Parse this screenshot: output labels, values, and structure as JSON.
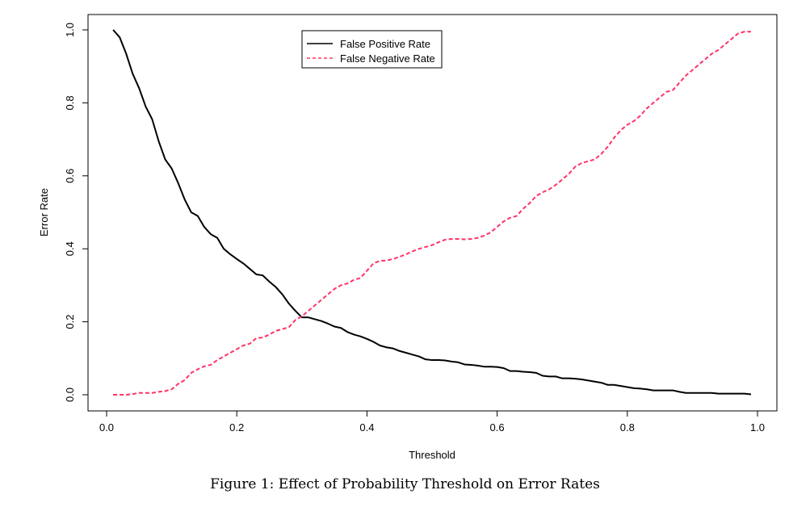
{
  "caption": "Figure 1: Effect of Probability Threshold on Error Rates",
  "colors": {
    "fpr": "#000000",
    "fnr": "#ff3366"
  },
  "chart_data": {
    "type": "line",
    "xlabel": "Threshold",
    "ylabel": "Error Rate",
    "xlim": [
      0,
      1
    ],
    "ylim": [
      0,
      1
    ],
    "xticks": [
      "0.0",
      "0.2",
      "0.4",
      "0.6",
      "0.8",
      "1.0"
    ],
    "yticks": [
      "0.0",
      "0.2",
      "0.4",
      "0.6",
      "0.8",
      "1.0"
    ],
    "grid": false,
    "legend": "top-center",
    "series": [
      {
        "name": "False Positive Rate",
        "style": "solid",
        "color": "#000000",
        "x": [
          0.01,
          0.02,
          0.03,
          0.04,
          0.05,
          0.06,
          0.07,
          0.08,
          0.09,
          0.1,
          0.11,
          0.12,
          0.13,
          0.14,
          0.15,
          0.16,
          0.17,
          0.18,
          0.19,
          0.2,
          0.21,
          0.22,
          0.23,
          0.24,
          0.25,
          0.26,
          0.27,
          0.28,
          0.29,
          0.3,
          0.31,
          0.32,
          0.33,
          0.34,
          0.35,
          0.36,
          0.37,
          0.38,
          0.39,
          0.4,
          0.41,
          0.42,
          0.43,
          0.44,
          0.45,
          0.46,
          0.47,
          0.48,
          0.49,
          0.5,
          0.51,
          0.52,
          0.53,
          0.54,
          0.55,
          0.56,
          0.57,
          0.58,
          0.59,
          0.6,
          0.61,
          0.62,
          0.63,
          0.64,
          0.65,
          0.66,
          0.67,
          0.68,
          0.69,
          0.7,
          0.71,
          0.72,
          0.73,
          0.74,
          0.75,
          0.76,
          0.77,
          0.78,
          0.79,
          0.8,
          0.81,
          0.82,
          0.83,
          0.84,
          0.85,
          0.86,
          0.87,
          0.88,
          0.89,
          0.9,
          0.91,
          0.92,
          0.93,
          0.94,
          0.95,
          0.96,
          0.97,
          0.98,
          0.99
        ],
        "values": [
          1.0,
          0.98,
          0.935,
          0.88,
          0.84,
          0.79,
          0.755,
          0.695,
          0.645,
          0.62,
          0.58,
          0.535,
          0.5,
          0.49,
          0.46,
          0.44,
          0.43,
          0.4,
          0.385,
          0.372,
          0.36,
          0.345,
          0.33,
          0.327,
          0.31,
          0.295,
          0.275,
          0.25,
          0.23,
          0.212,
          0.212,
          0.207,
          0.202,
          0.195,
          0.187,
          0.183,
          0.172,
          0.165,
          0.16,
          0.153,
          0.145,
          0.135,
          0.13,
          0.127,
          0.12,
          0.115,
          0.11,
          0.105,
          0.097,
          0.095,
          0.095,
          0.094,
          0.091,
          0.089,
          0.083,
          0.082,
          0.08,
          0.077,
          0.077,
          0.076,
          0.073,
          0.065,
          0.065,
          0.063,
          0.062,
          0.06,
          0.052,
          0.05,
          0.05,
          0.045,
          0.045,
          0.044,
          0.042,
          0.039,
          0.036,
          0.033,
          0.027,
          0.027,
          0.024,
          0.021,
          0.018,
          0.017,
          0.015,
          0.012,
          0.012,
          0.012,
          0.012,
          0.008,
          0.005,
          0.005,
          0.005,
          0.005,
          0.005,
          0.003,
          0.003,
          0.003,
          0.003,
          0.003,
          0.001
        ]
      },
      {
        "name": "False Negative Rate",
        "style": "dashed",
        "color": "#ff3366",
        "x": [
          0.01,
          0.02,
          0.03,
          0.04,
          0.05,
          0.06,
          0.07,
          0.08,
          0.09,
          0.1,
          0.11,
          0.12,
          0.13,
          0.14,
          0.15,
          0.16,
          0.17,
          0.18,
          0.19,
          0.2,
          0.21,
          0.22,
          0.23,
          0.24,
          0.25,
          0.26,
          0.27,
          0.28,
          0.29,
          0.3,
          0.31,
          0.32,
          0.33,
          0.34,
          0.35,
          0.36,
          0.37,
          0.38,
          0.39,
          0.4,
          0.41,
          0.42,
          0.43,
          0.44,
          0.45,
          0.46,
          0.47,
          0.48,
          0.49,
          0.5,
          0.51,
          0.52,
          0.53,
          0.54,
          0.55,
          0.56,
          0.57,
          0.58,
          0.59,
          0.6,
          0.61,
          0.62,
          0.63,
          0.64,
          0.65,
          0.66,
          0.67,
          0.68,
          0.69,
          0.7,
          0.71,
          0.72,
          0.73,
          0.74,
          0.75,
          0.76,
          0.77,
          0.78,
          0.79,
          0.8,
          0.81,
          0.82,
          0.83,
          0.84,
          0.85,
          0.86,
          0.87,
          0.88,
          0.89,
          0.9,
          0.91,
          0.92,
          0.93,
          0.94,
          0.95,
          0.96,
          0.97,
          0.98,
          0.99
        ],
        "values": [
          0.0,
          0.0,
          0.0,
          0.002,
          0.005,
          0.005,
          0.005,
          0.008,
          0.01,
          0.015,
          0.03,
          0.04,
          0.06,
          0.07,
          0.078,
          0.082,
          0.095,
          0.105,
          0.115,
          0.125,
          0.135,
          0.14,
          0.155,
          0.157,
          0.165,
          0.175,
          0.18,
          0.185,
          0.205,
          0.215,
          0.23,
          0.245,
          0.26,
          0.275,
          0.29,
          0.3,
          0.305,
          0.315,
          0.32,
          0.34,
          0.36,
          0.367,
          0.368,
          0.372,
          0.378,
          0.385,
          0.393,
          0.4,
          0.405,
          0.41,
          0.418,
          0.425,
          0.427,
          0.427,
          0.426,
          0.427,
          0.43,
          0.436,
          0.445,
          0.46,
          0.475,
          0.485,
          0.49,
          0.51,
          0.525,
          0.545,
          0.555,
          0.563,
          0.575,
          0.59,
          0.605,
          0.625,
          0.635,
          0.64,
          0.645,
          0.66,
          0.68,
          0.705,
          0.725,
          0.74,
          0.75,
          0.765,
          0.785,
          0.8,
          0.815,
          0.83,
          0.835,
          0.855,
          0.875,
          0.89,
          0.905,
          0.92,
          0.935,
          0.945,
          0.96,
          0.975,
          0.99,
          0.995,
          0.995
        ]
      }
    ]
  }
}
